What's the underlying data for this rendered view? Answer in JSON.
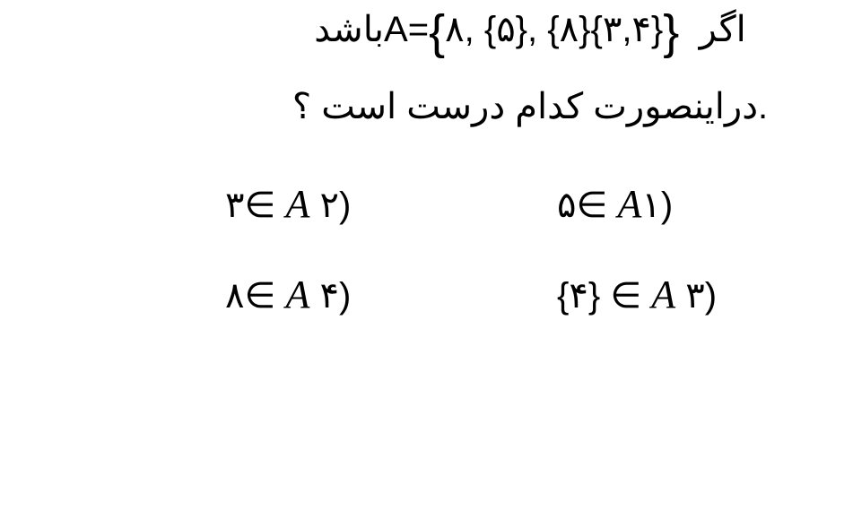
{
  "question": {
    "line1_prefix": "اگر ",
    "line1_set": "A=",
    "line1_setcontent_open": "{",
    "line1_setcontent_body": "۸, {۵}, {۸}{۳,۴}",
    "line1_setcontent_close": "}",
    "line1_suffix": "باشد",
    "line2": ".دراینصورت کدام درست است ؟"
  },
  "options": {
    "opt1_num": "۱)",
    "opt1_expr": "۵∈ ",
    "opt2_num": "۲)",
    "opt2_expr": "۳∈ ",
    "opt3_num": "۳)",
    "opt3_expr": "{۴} ∈ ",
    "opt4_num": "۴)",
    "opt4_expr": "۸∈ ",
    "setvar": "A"
  },
  "style": {
    "text_color": "#000000",
    "background_color": "#ffffff",
    "base_fontsize": 40,
    "setvar_fontsize": 44,
    "brace_fontsize": 54
  }
}
